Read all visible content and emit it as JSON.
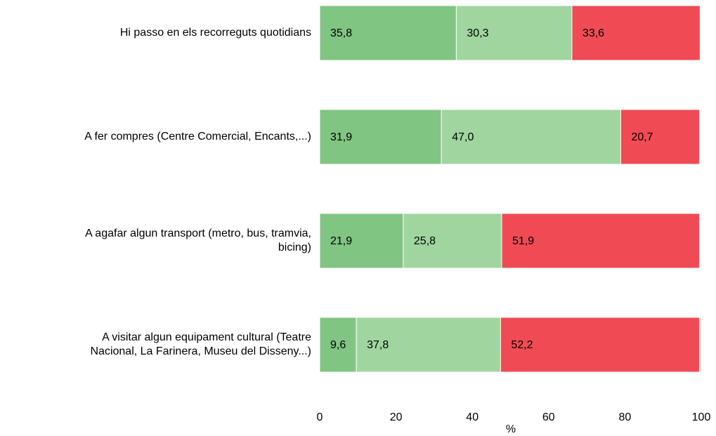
{
  "chart_data": {
    "type": "stacked_barh",
    "categories": [
      "Hi passo en els recorreguts quotidians",
      "A fer compres (Centre Comercial, Encants,...)",
      "A agafar algun transport (metro, bus, tramvia,\nbicing)",
      "A visitar algun equipament cultural (Teatre\nNacional, La Farinera, Museu del Disseny...)"
    ],
    "series": [
      {
        "color": "#80c581",
        "values": [
          35.8,
          31.9,
          21.9,
          9.6
        ],
        "value_labels": [
          "35,8",
          "31,9",
          "21,9",
          "9,6"
        ]
      },
      {
        "color": "#a0d5a0",
        "values": [
          30.3,
          47.0,
          25.8,
          37.8
        ],
        "value_labels": [
          "30,3",
          "47,0",
          "25,8",
          "37,8"
        ]
      },
      {
        "color": "#f04b55",
        "values": [
          33.6,
          20.7,
          51.9,
          52.2
        ],
        "value_labels": [
          "33,6",
          "20,7",
          "51,9",
          "52,2"
        ]
      },
      {
        "color": "#c8c8c8",
        "values": [
          null,
          null,
          null,
          0.4
        ]
      }
    ],
    "xlabel": "%",
    "xlim": [
      0,
      100
    ],
    "xticks": [
      0,
      20,
      40,
      60,
      80,
      100
    ],
    "grid": false
  }
}
